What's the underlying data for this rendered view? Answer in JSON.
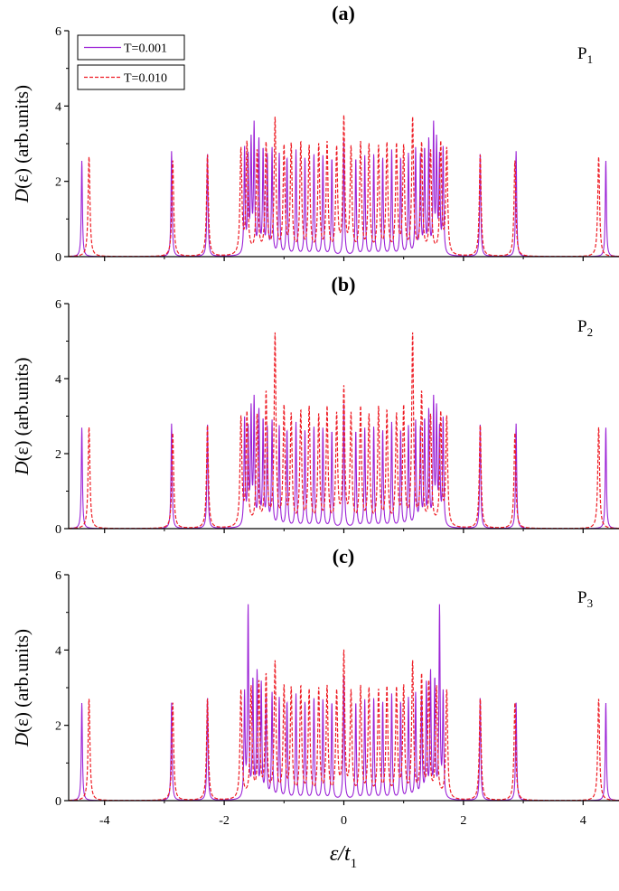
{
  "chart_data": [
    {
      "type": "line",
      "panel_label": "(a)",
      "title": "(a)",
      "annotation": {
        "base": "P",
        "sub": "1"
      },
      "ylabel": {
        "italic": "D",
        "rest": "(ε) (arb.units)"
      },
      "xlim": [
        -4.6,
        4.6
      ],
      "ylim": [
        0,
        6
      ],
      "yticks": [
        0,
        2,
        4,
        6
      ],
      "xticks": [
        -4,
        -2,
        0,
        2,
        4
      ],
      "x_tick_labels_shown": false,
      "legend": {
        "position": "top-left",
        "entries": [
          "T=0.001",
          "T=0.010"
        ]
      },
      "series": [
        {
          "name": "T=0.001",
          "color": "#9b22d6",
          "style": "solid",
          "peaks": [
            [
              -4.38,
              2.55
            ],
            [
              -2.88,
              2.8
            ],
            [
              -2.28,
              2.75
            ],
            [
              -1.66,
              2.8
            ],
            [
              -1.6,
              2.5
            ],
            [
              -1.55,
              2.9
            ],
            [
              -1.5,
              3.35
            ],
            [
              -1.42,
              3.0
            ],
            [
              -1.35,
              2.75
            ],
            [
              -1.28,
              2.6
            ],
            [
              -1.2,
              2.8
            ],
            [
              -1.08,
              2.7
            ],
            [
              -0.95,
              2.6
            ],
            [
              -0.8,
              2.8
            ],
            [
              -0.65,
              2.6
            ],
            [
              -0.5,
              2.7
            ],
            [
              -0.35,
              2.65
            ],
            [
              -0.2,
              2.6
            ],
            [
              0.0,
              3.05
            ],
            [
              0.2,
              2.6
            ],
            [
              0.35,
              2.65
            ],
            [
              0.5,
              2.7
            ],
            [
              0.65,
              2.6
            ],
            [
              0.8,
              2.8
            ],
            [
              0.95,
              2.6
            ],
            [
              1.08,
              2.7
            ],
            [
              1.2,
              2.8
            ],
            [
              1.28,
              2.6
            ],
            [
              1.35,
              2.75
            ],
            [
              1.42,
              3.0
            ],
            [
              1.5,
              3.35
            ],
            [
              1.55,
              2.9
            ],
            [
              1.6,
              2.5
            ],
            [
              1.66,
              2.8
            ],
            [
              2.28,
              2.75
            ],
            [
              2.88,
              2.8
            ],
            [
              4.38,
              2.55
            ]
          ]
        },
        {
          "name": "T=0.010",
          "color": "#ee1c24",
          "style": "dashed",
          "peaks": [
            [
              -4.26,
              2.65
            ],
            [
              -2.86,
              2.55
            ],
            [
              -2.28,
              2.7
            ],
            [
              -1.72,
              2.75
            ],
            [
              -1.62,
              2.9
            ],
            [
              -1.45,
              2.7
            ],
            [
              -1.3,
              2.9
            ],
            [
              -1.15,
              3.55
            ],
            [
              -1.0,
              2.8
            ],
            [
              -0.88,
              2.85
            ],
            [
              -0.72,
              2.9
            ],
            [
              -0.58,
              2.8
            ],
            [
              -0.42,
              2.85
            ],
            [
              -0.28,
              2.9
            ],
            [
              -0.12,
              2.75
            ],
            [
              0.0,
              3.55
            ],
            [
              0.12,
              2.75
            ],
            [
              0.28,
              2.9
            ],
            [
              0.42,
              2.85
            ],
            [
              0.58,
              2.8
            ],
            [
              0.72,
              2.9
            ],
            [
              0.88,
              2.85
            ],
            [
              1.0,
              2.8
            ],
            [
              1.15,
              3.55
            ],
            [
              1.3,
              2.9
            ],
            [
              1.45,
              2.7
            ],
            [
              1.62,
              2.9
            ],
            [
              1.72,
              2.75
            ],
            [
              2.28,
              2.7
            ],
            [
              2.86,
              2.55
            ],
            [
              4.26,
              2.65
            ]
          ]
        }
      ]
    },
    {
      "type": "line",
      "panel_label": "(b)",
      "title": "(b)",
      "annotation": {
        "base": "P",
        "sub": "2"
      },
      "ylabel": {
        "italic": "D",
        "rest": "(ε) (arb.units)"
      },
      "xlim": [
        -4.6,
        4.6
      ],
      "ylim": [
        0,
        6
      ],
      "yticks": [
        0,
        2,
        4,
        6
      ],
      "xticks": [
        -4,
        -2,
        0,
        2,
        4
      ],
      "x_tick_labels_shown": false,
      "series": [
        {
          "name": "T=0.001",
          "color": "#9b22d6",
          "style": "solid",
          "peaks": [
            [
              -4.38,
              2.7
            ],
            [
              -2.88,
              2.8
            ],
            [
              -2.28,
              2.8
            ],
            [
              -1.66,
              2.85
            ],
            [
              -1.6,
              2.5
            ],
            [
              -1.55,
              3.0
            ],
            [
              -1.5,
              3.3
            ],
            [
              -1.42,
              3.05
            ],
            [
              -1.35,
              2.8
            ],
            [
              -1.28,
              2.6
            ],
            [
              -1.2,
              2.8
            ],
            [
              -1.08,
              2.7
            ],
            [
              -0.95,
              2.6
            ],
            [
              -0.8,
              2.8
            ],
            [
              -0.65,
              2.6
            ],
            [
              -0.5,
              2.7
            ],
            [
              -0.35,
              2.65
            ],
            [
              -0.2,
              2.6
            ],
            [
              0.0,
              3.3
            ],
            [
              0.2,
              2.6
            ],
            [
              0.35,
              2.65
            ],
            [
              0.5,
              2.7
            ],
            [
              0.65,
              2.6
            ],
            [
              0.8,
              2.8
            ],
            [
              0.95,
              2.6
            ],
            [
              1.08,
              2.7
            ],
            [
              1.2,
              2.8
            ],
            [
              1.28,
              2.6
            ],
            [
              1.35,
              2.8
            ],
            [
              1.42,
              3.05
            ],
            [
              1.5,
              3.3
            ],
            [
              1.55,
              3.0
            ],
            [
              1.6,
              2.5
            ],
            [
              1.66,
              2.85
            ],
            [
              2.28,
              2.8
            ],
            [
              2.88,
              2.8
            ],
            [
              4.38,
              2.7
            ]
          ]
        },
        {
          "name": "T=0.010",
          "color": "#ee1c24",
          "style": "dashed",
          "peaks": [
            [
              -4.26,
              2.7
            ],
            [
              -2.86,
              2.55
            ],
            [
              -2.28,
              2.75
            ],
            [
              -1.72,
              2.85
            ],
            [
              -1.62,
              2.95
            ],
            [
              -1.45,
              2.9
            ],
            [
              -1.3,
              3.5
            ],
            [
              -1.15,
              5.05
            ],
            [
              -1.0,
              3.1
            ],
            [
              -0.88,
              2.9
            ],
            [
              -0.72,
              3.0
            ],
            [
              -0.58,
              3.1
            ],
            [
              -0.42,
              2.9
            ],
            [
              -0.28,
              3.1
            ],
            [
              -0.12,
              2.9
            ],
            [
              0.0,
              3.6
            ],
            [
              0.12,
              2.9
            ],
            [
              0.28,
              3.1
            ],
            [
              0.42,
              2.9
            ],
            [
              0.58,
              3.1
            ],
            [
              0.72,
              3.0
            ],
            [
              0.88,
              2.9
            ],
            [
              1.0,
              3.1
            ],
            [
              1.15,
              5.05
            ],
            [
              1.3,
              3.5
            ],
            [
              1.45,
              2.9
            ],
            [
              1.62,
              2.95
            ],
            [
              1.72,
              2.85
            ],
            [
              2.28,
              2.75
            ],
            [
              2.86,
              2.55
            ],
            [
              4.26,
              2.7
            ]
          ]
        }
      ]
    },
    {
      "type": "line",
      "panel_label": "(c)",
      "title": "(c)",
      "annotation": {
        "base": "P",
        "sub": "3"
      },
      "ylabel": {
        "italic": "D",
        "rest": "(ε) (arb.units)"
      },
      "xlim": [
        -4.6,
        4.6
      ],
      "ylim": [
        0,
        6
      ],
      "yticks": [
        0,
        2,
        4,
        6
      ],
      "xticks": [
        -4,
        -2,
        0,
        2,
        4
      ],
      "xtick_labels": [
        "-4",
        "-2",
        "0",
        "2",
        "4"
      ],
      "x_tick_labels_shown": true,
      "series": [
        {
          "name": "T=0.001",
          "color": "#9b22d6",
          "style": "solid",
          "peaks": [
            [
              -4.38,
              2.6
            ],
            [
              -2.88,
              2.6
            ],
            [
              -2.28,
              2.75
            ],
            [
              -1.66,
              2.75
            ],
            [
              -1.6,
              5.05
            ],
            [
              -1.52,
              3.1
            ],
            [
              -1.45,
              3.3
            ],
            [
              -1.38,
              3.0
            ],
            [
              -1.3,
              2.7
            ],
            [
              -1.2,
              2.8
            ],
            [
              -1.08,
              2.7
            ],
            [
              -0.95,
              2.6
            ],
            [
              -0.8,
              2.8
            ],
            [
              -0.65,
              2.6
            ],
            [
              -0.5,
              2.7
            ],
            [
              -0.35,
              2.65
            ],
            [
              -0.2,
              2.6
            ],
            [
              0.0,
              3.3
            ],
            [
              0.2,
              2.6
            ],
            [
              0.35,
              2.65
            ],
            [
              0.5,
              2.7
            ],
            [
              0.65,
              2.6
            ],
            [
              0.8,
              2.8
            ],
            [
              0.95,
              2.6
            ],
            [
              1.08,
              2.7
            ],
            [
              1.2,
              2.8
            ],
            [
              1.3,
              2.7
            ],
            [
              1.38,
              3.0
            ],
            [
              1.45,
              3.3
            ],
            [
              1.52,
              3.1
            ],
            [
              1.6,
              5.05
            ],
            [
              1.66,
              2.75
            ],
            [
              2.28,
              2.75
            ],
            [
              2.88,
              2.6
            ],
            [
              4.38,
              2.6
            ]
          ]
        },
        {
          "name": "T=0.010",
          "color": "#ee1c24",
          "style": "dashed",
          "peaks": [
            [
              -4.26,
              2.7
            ],
            [
              -2.86,
              2.6
            ],
            [
              -2.28,
              2.7
            ],
            [
              -1.72,
              2.85
            ],
            [
              -1.55,
              2.9
            ],
            [
              -1.42,
              3.0
            ],
            [
              -1.3,
              3.2
            ],
            [
              -1.15,
              3.55
            ],
            [
              -1.0,
              2.9
            ],
            [
              -0.88,
              2.85
            ],
            [
              -0.72,
              2.9
            ],
            [
              -0.58,
              2.8
            ],
            [
              -0.42,
              2.85
            ],
            [
              -0.28,
              2.9
            ],
            [
              -0.12,
              2.75
            ],
            [
              0.0,
              3.8
            ],
            [
              0.12,
              2.75
            ],
            [
              0.28,
              2.9
            ],
            [
              0.42,
              2.85
            ],
            [
              0.58,
              2.8
            ],
            [
              0.72,
              2.9
            ],
            [
              0.88,
              2.85
            ],
            [
              1.0,
              2.9
            ],
            [
              1.15,
              3.55
            ],
            [
              1.3,
              3.2
            ],
            [
              1.42,
              3.0
            ],
            [
              1.55,
              2.9
            ],
            [
              1.72,
              2.85
            ],
            [
              2.28,
              2.7
            ],
            [
              2.86,
              2.6
            ],
            [
              4.26,
              2.7
            ]
          ]
        }
      ]
    }
  ],
  "xlabel": {
    "main": "ε/t",
    "sub": "1"
  }
}
